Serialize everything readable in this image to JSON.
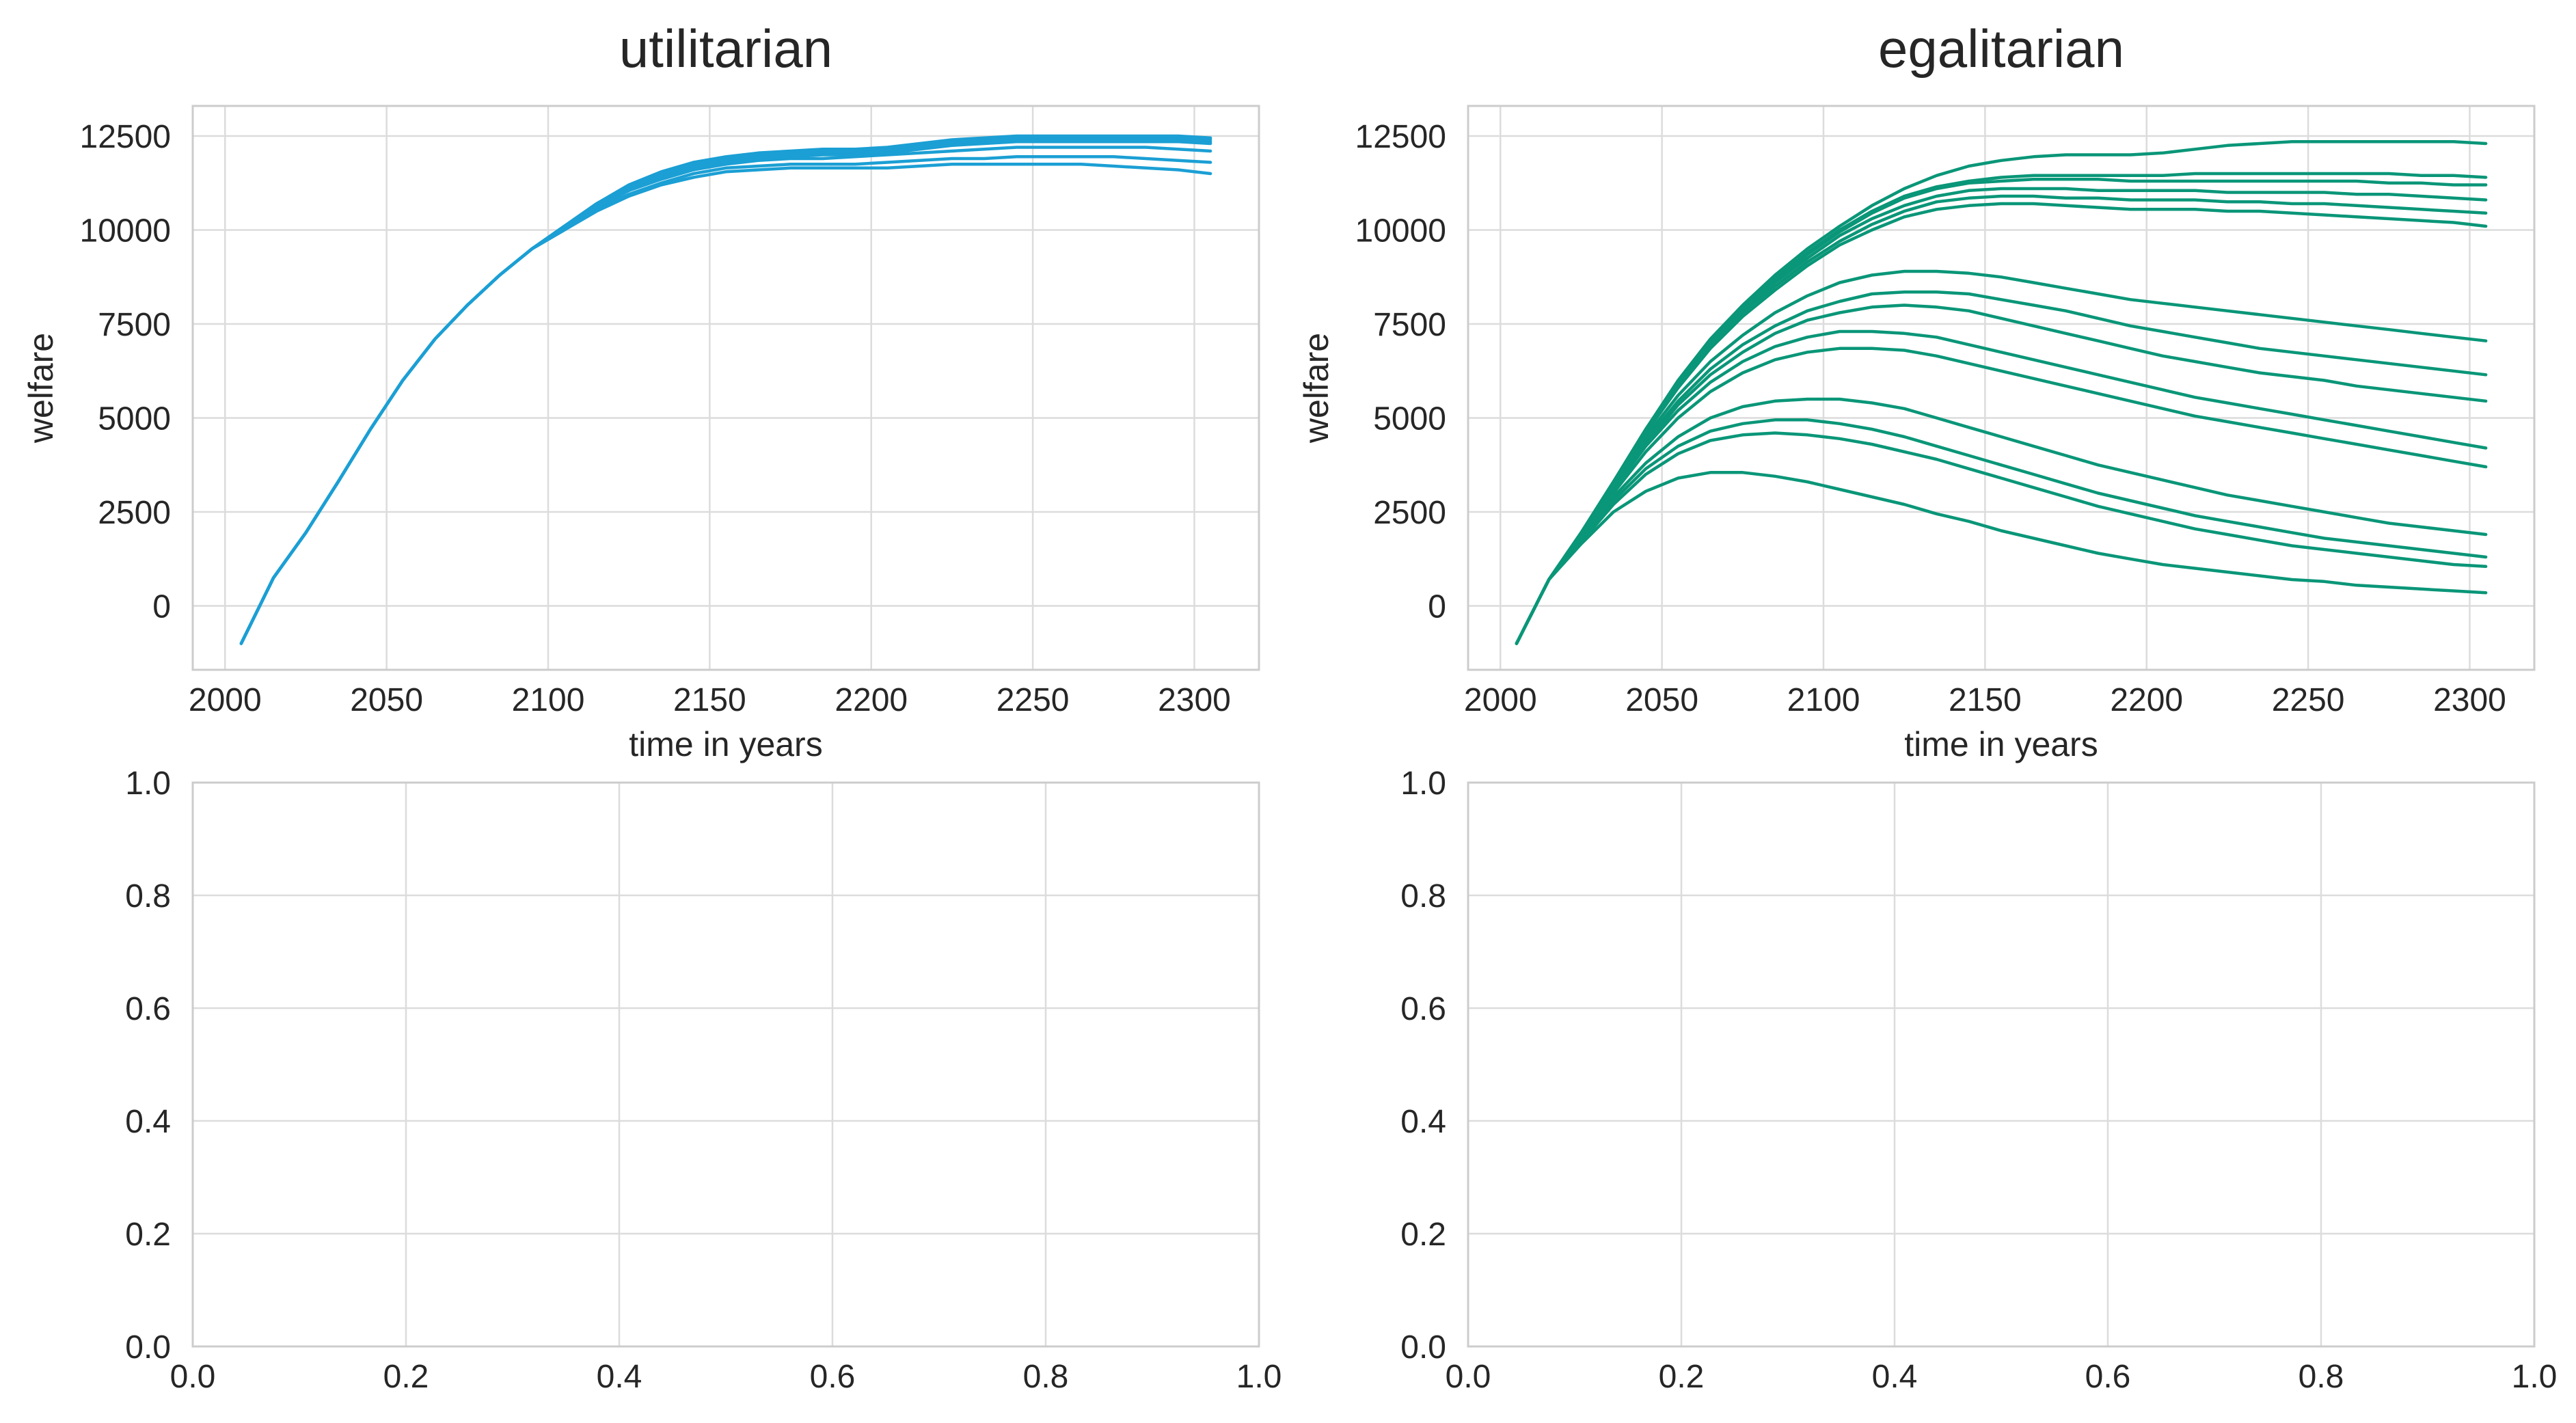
{
  "chart_data": [
    {
      "type": "line",
      "title": "utilitarian",
      "xlabel": "time in years",
      "ylabel": "welfare",
      "xlim": [
        1990,
        2320
      ],
      "ylim": [
        -1700,
        13300
      ],
      "xticks": [
        2000,
        2050,
        2100,
        2150,
        2200,
        2250,
        2300
      ],
      "yticks": [
        0,
        2500,
        5000,
        7500,
        10000,
        12500
      ],
      "grid": true,
      "color": "#1b9fd4",
      "x": [
        2005,
        2015,
        2025,
        2035,
        2045,
        2055,
        2065,
        2075,
        2085,
        2095,
        2105,
        2115,
        2125,
        2135,
        2145,
        2155,
        2165,
        2175,
        2185,
        2195,
        2205,
        2215,
        2225,
        2235,
        2245,
        2255,
        2265,
        2275,
        2285,
        2295,
        2305
      ],
      "series": [
        {
          "values": [
            -1000,
            750,
            1950,
            3300,
            4700,
            6000,
            7100,
            8000,
            8800,
            9500,
            10100,
            10700,
            11200,
            11550,
            11800,
            11950,
            12050,
            12100,
            12150,
            12150,
            12200,
            12300,
            12400,
            12450,
            12500,
            12500,
            12500,
            12500,
            12500,
            12500,
            12450
          ]
        },
        {
          "values": [
            -1000,
            750,
            1950,
            3300,
            4700,
            6000,
            7100,
            8000,
            8800,
            9500,
            10100,
            10700,
            11150,
            11500,
            11750,
            11900,
            12000,
            12050,
            12100,
            12100,
            12150,
            12250,
            12350,
            12400,
            12450,
            12450,
            12450,
            12450,
            12450,
            12450,
            12400
          ]
        },
        {
          "values": [
            -1000,
            750,
            1950,
            3300,
            4700,
            6000,
            7100,
            8000,
            8800,
            9500,
            10100,
            10650,
            11100,
            11450,
            11700,
            11850,
            11950,
            12000,
            12050,
            12050,
            12100,
            12200,
            12300,
            12350,
            12400,
            12400,
            12400,
            12400,
            12400,
            12400,
            12350
          ]
        },
        {
          "values": [
            -1000,
            750,
            1950,
            3300,
            4700,
            6000,
            7100,
            8000,
            8800,
            9500,
            10050,
            10600,
            11050,
            11400,
            11650,
            11800,
            11900,
            11950,
            12000,
            12000,
            12050,
            12150,
            12250,
            12300,
            12350,
            12350,
            12350,
            12350,
            12350,
            12350,
            12300
          ]
        },
        {
          "values": [
            -1000,
            750,
            1950,
            3300,
            4700,
            6000,
            7100,
            8000,
            8800,
            9500,
            10050,
            10600,
            11050,
            11350,
            11600,
            11750,
            11850,
            11900,
            11900,
            11950,
            12000,
            12050,
            12100,
            12150,
            12200,
            12200,
            12200,
            12200,
            12200,
            12150,
            12100
          ]
        },
        {
          "values": [
            -1000,
            750,
            1950,
            3300,
            4700,
            6000,
            7100,
            8000,
            8800,
            9500,
            10000,
            10550,
            10950,
            11250,
            11500,
            11650,
            11700,
            11750,
            11750,
            11750,
            11800,
            11850,
            11900,
            11900,
            11950,
            11950,
            11950,
            11950,
            11900,
            11850,
            11800
          ]
        },
        {
          "values": [
            -1000,
            750,
            1950,
            3300,
            4700,
            6000,
            7100,
            8000,
            8800,
            9500,
            10000,
            10500,
            10900,
            11200,
            11400,
            11550,
            11600,
            11650,
            11650,
            11650,
            11650,
            11700,
            11750,
            11750,
            11750,
            11750,
            11750,
            11700,
            11650,
            11600,
            11500
          ]
        }
      ]
    },
    {
      "type": "line",
      "title": "egalitarian",
      "xlabel": "time in years",
      "ylabel": "welfare",
      "xlim": [
        1990,
        2320
      ],
      "ylim": [
        -1700,
        13300
      ],
      "xticks": [
        2000,
        2050,
        2100,
        2150,
        2200,
        2250,
        2300
      ],
      "yticks": [
        0,
        2500,
        5000,
        7500,
        10000,
        12500
      ],
      "grid": true,
      "color": "#0a9678",
      "x": [
        2005,
        2015,
        2025,
        2035,
        2045,
        2055,
        2065,
        2075,
        2085,
        2095,
        2105,
        2115,
        2125,
        2135,
        2145,
        2155,
        2165,
        2175,
        2185,
        2195,
        2205,
        2215,
        2225,
        2235,
        2245,
        2255,
        2265,
        2275,
        2285,
        2295,
        2305
      ],
      "series": [
        {
          "values": [
            -1000,
            700,
            1950,
            3300,
            4700,
            6000,
            7100,
            8000,
            8800,
            9500,
            10100,
            10650,
            11100,
            11450,
            11700,
            11850,
            11950,
            12000,
            12000,
            12000,
            12050,
            12150,
            12250,
            12300,
            12350,
            12350,
            12350,
            12350,
            12350,
            12350,
            12300
          ]
        },
        {
          "values": [
            -1000,
            700,
            1950,
            3300,
            4700,
            5950,
            7050,
            7950,
            8700,
            9400,
            10000,
            10500,
            10900,
            11150,
            11300,
            11400,
            11450,
            11450,
            11450,
            11450,
            11450,
            11500,
            11500,
            11500,
            11500,
            11500,
            11500,
            11500,
            11450,
            11450,
            11400
          ]
        },
        {
          "values": [
            -1000,
            700,
            1950,
            3300,
            4700,
            5950,
            7000,
            7900,
            8650,
            9350,
            9950,
            10450,
            10850,
            11100,
            11250,
            11300,
            11350,
            11350,
            11350,
            11300,
            11300,
            11300,
            11300,
            11300,
            11300,
            11300,
            11300,
            11250,
            11250,
            11200,
            11200
          ]
        },
        {
          "values": [
            -1000,
            700,
            1950,
            3300,
            4650,
            5900,
            6950,
            7850,
            8600,
            9250,
            9850,
            10300,
            10650,
            10900,
            11050,
            11100,
            11100,
            11100,
            11050,
            11050,
            11050,
            11050,
            11000,
            11000,
            11000,
            11000,
            10950,
            10950,
            10900,
            10850,
            10800
          ]
        },
        {
          "values": [
            -1000,
            700,
            1950,
            3300,
            4650,
            5850,
            6900,
            7800,
            8500,
            9150,
            9700,
            10150,
            10500,
            10750,
            10850,
            10900,
            10900,
            10850,
            10850,
            10800,
            10800,
            10800,
            10750,
            10750,
            10700,
            10700,
            10650,
            10600,
            10550,
            10500,
            10450
          ]
        },
        {
          "values": [
            -1000,
            700,
            1900,
            3250,
            4600,
            5800,
            6850,
            7700,
            8400,
            9050,
            9600,
            10000,
            10350,
            10550,
            10650,
            10700,
            10700,
            10650,
            10600,
            10550,
            10550,
            10550,
            10500,
            10500,
            10450,
            10400,
            10350,
            10300,
            10250,
            10200,
            10100
          ]
        },
        {
          "values": [
            -1000,
            700,
            1900,
            3200,
            4500,
            5600,
            6500,
            7200,
            7800,
            8250,
            8600,
            8800,
            8900,
            8900,
            8850,
            8750,
            8600,
            8450,
            8300,
            8150,
            8050,
            7950,
            7850,
            7750,
            7650,
            7550,
            7450,
            7350,
            7250,
            7150,
            7050
          ]
        },
        {
          "values": [
            -1000,
            700,
            1900,
            3150,
            4400,
            5450,
            6300,
            6950,
            7450,
            7850,
            8100,
            8300,
            8350,
            8350,
            8300,
            8150,
            8000,
            7850,
            7650,
            7450,
            7300,
            7150,
            7000,
            6850,
            6750,
            6650,
            6550,
            6450,
            6350,
            6250,
            6150
          ]
        },
        {
          "values": [
            -1000,
            700,
            1900,
            3100,
            4300,
            5350,
            6150,
            6750,
            7250,
            7600,
            7800,
            7950,
            8000,
            7950,
            7850,
            7650,
            7450,
            7250,
            7050,
            6850,
            6650,
            6500,
            6350,
            6200,
            6100,
            6000,
            5850,
            5750,
            5650,
            5550,
            5450
          ]
        },
        {
          "values": [
            -1000,
            700,
            1900,
            3100,
            4250,
            5200,
            5950,
            6500,
            6900,
            7150,
            7300,
            7300,
            7250,
            7150,
            6950,
            6750,
            6550,
            6350,
            6150,
            5950,
            5750,
            5550,
            5400,
            5250,
            5100,
            4950,
            4800,
            4650,
            4500,
            4350,
            4200
          ]
        },
        {
          "values": [
            -1000,
            700,
            1850,
            3000,
            4100,
            5000,
            5700,
            6200,
            6550,
            6750,
            6850,
            6850,
            6800,
            6650,
            6450,
            6250,
            6050,
            5850,
            5650,
            5450,
            5250,
            5050,
            4900,
            4750,
            4600,
            4450,
            4300,
            4150,
            4000,
            3850,
            3700
          ]
        },
        {
          "values": [
            -1000,
            700,
            1800,
            2900,
            3800,
            4500,
            5000,
            5300,
            5450,
            5500,
            5500,
            5400,
            5250,
            5000,
            4750,
            4500,
            4250,
            4000,
            3750,
            3550,
            3350,
            3150,
            2950,
            2800,
            2650,
            2500,
            2350,
            2200,
            2100,
            2000,
            1900
          ]
        },
        {
          "values": [
            -1000,
            700,
            1750,
            2800,
            3650,
            4250,
            4650,
            4850,
            4950,
            4950,
            4850,
            4700,
            4500,
            4250,
            4000,
            3750,
            3500,
            3250,
            3000,
            2800,
            2600,
            2400,
            2250,
            2100,
            1950,
            1800,
            1700,
            1600,
            1500,
            1400,
            1300
          ]
        },
        {
          "values": [
            -1000,
            700,
            1700,
            2700,
            3500,
            4050,
            4400,
            4550,
            4600,
            4550,
            4450,
            4300,
            4100,
            3900,
            3650,
            3400,
            3150,
            2900,
            2650,
            2450,
            2250,
            2050,
            1900,
            1750,
            1600,
            1500,
            1400,
            1300,
            1200,
            1100,
            1050
          ]
        },
        {
          "values": [
            -1000,
            700,
            1650,
            2500,
            3050,
            3400,
            3550,
            3550,
            3450,
            3300,
            3100,
            2900,
            2700,
            2450,
            2250,
            2000,
            1800,
            1600,
            1400,
            1250,
            1100,
            1000,
            900,
            800,
            700,
            650,
            550,
            500,
            450,
            400,
            350
          ]
        }
      ]
    },
    {
      "type": "line",
      "title": "",
      "xlabel": "",
      "ylabel": "",
      "xlim": [
        0,
        1
      ],
      "ylim": [
        0,
        1
      ],
      "xticks": [
        0.0,
        0.2,
        0.4,
        0.6,
        0.8,
        1.0
      ],
      "yticks": [
        0.0,
        0.2,
        0.4,
        0.6,
        0.8,
        1.0
      ],
      "grid": true,
      "series": []
    },
    {
      "type": "line",
      "title": "",
      "xlabel": "",
      "ylabel": "",
      "xlim": [
        0,
        1
      ],
      "ylim": [
        0,
        1
      ],
      "xticks": [
        0.0,
        0.2,
        0.4,
        0.6,
        0.8,
        1.0
      ],
      "yticks": [
        0.0,
        0.2,
        0.4,
        0.6,
        0.8,
        1.0
      ],
      "grid": true,
      "series": []
    }
  ]
}
